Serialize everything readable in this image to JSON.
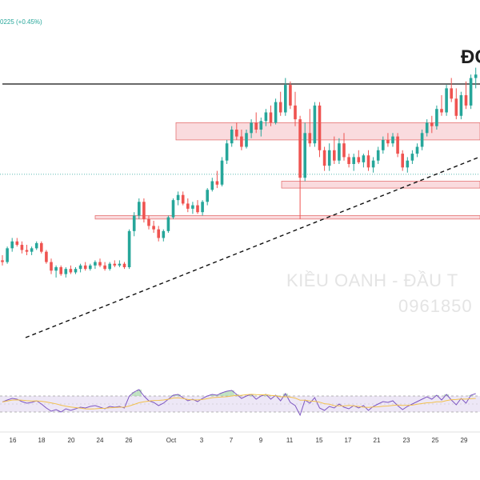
{
  "header": {
    "ticker_change": "0225 (+0.45%)",
    "title": "ĐC"
  },
  "watermark": {
    "line1": "KIỀU OANH - ĐẦU T",
    "line2": "0961850"
  },
  "colors": {
    "up": "#26a69a",
    "down": "#ef5350",
    "zone_fill": "#f8cfd3",
    "zone_stroke": "#e57373",
    "rsi_line": "#7e57c2",
    "rsi_ma": "#f2c14e",
    "rsi_band": "#ede7f6"
  },
  "chart_data": {
    "type": "candlestick",
    "x_tick_labels": [
      "16",
      "18",
      "20",
      "24",
      "26",
      "Oct",
      "3",
      "7",
      "9",
      "11",
      "15",
      "17",
      "21",
      "23",
      "25",
      "29"
    ],
    "price_axis_range": [
      0,
      100
    ],
    "candles": [
      {
        "o": 44,
        "h": 47,
        "l": 41,
        "c": 43
      },
      {
        "o": 43,
        "h": 52,
        "l": 42,
        "c": 51
      },
      {
        "o": 51,
        "h": 57,
        "l": 49,
        "c": 55
      },
      {
        "o": 55,
        "h": 57,
        "l": 52,
        "c": 53
      },
      {
        "o": 53,
        "h": 55,
        "l": 48,
        "c": 50
      },
      {
        "o": 50,
        "h": 53,
        "l": 47,
        "c": 49
      },
      {
        "o": 49,
        "h": 52,
        "l": 47,
        "c": 51
      },
      {
        "o": 51,
        "h": 55,
        "l": 50,
        "c": 54
      },
      {
        "o": 54,
        "h": 55,
        "l": 48,
        "c": 49
      },
      {
        "o": 49,
        "h": 50,
        "l": 42,
        "c": 43
      },
      {
        "o": 43,
        "h": 45,
        "l": 36,
        "c": 38
      },
      {
        "o": 38,
        "h": 41,
        "l": 34,
        "c": 40
      },
      {
        "o": 40,
        "h": 41,
        "l": 35,
        "c": 36
      },
      {
        "o": 36,
        "h": 40,
        "l": 34,
        "c": 39
      },
      {
        "o": 39,
        "h": 41,
        "l": 36,
        "c": 37
      },
      {
        "o": 37,
        "h": 40,
        "l": 36,
        "c": 39
      },
      {
        "o": 39,
        "h": 42,
        "l": 37,
        "c": 41
      },
      {
        "o": 41,
        "h": 43,
        "l": 38,
        "c": 39
      },
      {
        "o": 39,
        "h": 42,
        "l": 38,
        "c": 41
      },
      {
        "o": 41,
        "h": 44,
        "l": 39,
        "c": 43
      },
      {
        "o": 43,
        "h": 45,
        "l": 40,
        "c": 41
      },
      {
        "o": 41,
        "h": 43,
        "l": 38,
        "c": 39
      },
      {
        "o": 39,
        "h": 43,
        "l": 38,
        "c": 42
      },
      {
        "o": 42,
        "h": 44,
        "l": 40,
        "c": 41
      },
      {
        "o": 41,
        "h": 44,
        "l": 40,
        "c": 42
      },
      {
        "o": 42,
        "h": 43,
        "l": 39,
        "c": 40
      },
      {
        "o": 40,
        "h": 62,
        "l": 39,
        "c": 61
      },
      {
        "o": 61,
        "h": 72,
        "l": 58,
        "c": 70
      },
      {
        "o": 70,
        "h": 80,
        "l": 68,
        "c": 78
      },
      {
        "o": 78,
        "h": 80,
        "l": 66,
        "c": 68
      },
      {
        "o": 68,
        "h": 70,
        "l": 62,
        "c": 64
      },
      {
        "o": 64,
        "h": 67,
        "l": 60,
        "c": 62
      },
      {
        "o": 62,
        "h": 64,
        "l": 55,
        "c": 57
      },
      {
        "o": 57,
        "h": 62,
        "l": 55,
        "c": 61
      },
      {
        "o": 61,
        "h": 70,
        "l": 60,
        "c": 69
      },
      {
        "o": 69,
        "h": 80,
        "l": 68,
        "c": 79
      },
      {
        "o": 79,
        "h": 84,
        "l": 76,
        "c": 82
      },
      {
        "o": 82,
        "h": 84,
        "l": 76,
        "c": 77
      },
      {
        "o": 77,
        "h": 80,
        "l": 72,
        "c": 74
      },
      {
        "o": 74,
        "h": 78,
        "l": 71,
        "c": 76
      },
      {
        "o": 76,
        "h": 79,
        "l": 71,
        "c": 72
      },
      {
        "o": 72,
        "h": 79,
        "l": 70,
        "c": 78
      },
      {
        "o": 78,
        "h": 86,
        "l": 76,
        "c": 85
      },
      {
        "o": 85,
        "h": 92,
        "l": 84,
        "c": 90
      },
      {
        "o": 90,
        "h": 96,
        "l": 86,
        "c": 88
      },
      {
        "o": 88,
        "h": 104,
        "l": 87,
        "c": 102
      },
      {
        "o": 102,
        "h": 114,
        "l": 100,
        "c": 112
      },
      {
        "o": 112,
        "h": 122,
        "l": 110,
        "c": 120
      },
      {
        "o": 120,
        "h": 124,
        "l": 114,
        "c": 116
      },
      {
        "o": 116,
        "h": 120,
        "l": 108,
        "c": 110
      },
      {
        "o": 110,
        "h": 120,
        "l": 109,
        "c": 118
      },
      {
        "o": 118,
        "h": 126,
        "l": 115,
        "c": 124
      },
      {
        "o": 124,
        "h": 130,
        "l": 118,
        "c": 120
      },
      {
        "o": 120,
        "h": 127,
        "l": 116,
        "c": 125
      },
      {
        "o": 125,
        "h": 132,
        "l": 122,
        "c": 130
      },
      {
        "o": 130,
        "h": 134,
        "l": 122,
        "c": 124
      },
      {
        "o": 124,
        "h": 138,
        "l": 123,
        "c": 136
      },
      {
        "o": 136,
        "h": 142,
        "l": 128,
        "c": 130
      },
      {
        "o": 130,
        "h": 150,
        "l": 128,
        "c": 146
      },
      {
        "o": 146,
        "h": 148,
        "l": 132,
        "c": 134
      },
      {
        "o": 134,
        "h": 142,
        "l": 122,
        "c": 126
      },
      {
        "o": 126,
        "h": 128,
        "l": 68,
        "c": 92
      },
      {
        "o": 92,
        "h": 124,
        "l": 90,
        "c": 118
      },
      {
        "o": 118,
        "h": 132,
        "l": 110,
        "c": 112
      },
      {
        "o": 112,
        "h": 136,
        "l": 110,
        "c": 134
      },
      {
        "o": 134,
        "h": 136,
        "l": 104,
        "c": 108
      },
      {
        "o": 108,
        "h": 110,
        "l": 96,
        "c": 99
      },
      {
        "o": 99,
        "h": 112,
        "l": 96,
        "c": 108
      },
      {
        "o": 108,
        "h": 116,
        "l": 100,
        "c": 102
      },
      {
        "o": 102,
        "h": 115,
        "l": 100,
        "c": 112
      },
      {
        "o": 112,
        "h": 118,
        "l": 102,
        "c": 104
      },
      {
        "o": 104,
        "h": 106,
        "l": 98,
        "c": 100
      },
      {
        "o": 100,
        "h": 106,
        "l": 96,
        "c": 104
      },
      {
        "o": 104,
        "h": 108,
        "l": 100,
        "c": 101
      },
      {
        "o": 101,
        "h": 106,
        "l": 98,
        "c": 105
      },
      {
        "o": 105,
        "h": 108,
        "l": 96,
        "c": 98
      },
      {
        "o": 98,
        "h": 104,
        "l": 95,
        "c": 102
      },
      {
        "o": 102,
        "h": 110,
        "l": 100,
        "c": 108
      },
      {
        "o": 108,
        "h": 116,
        "l": 106,
        "c": 114
      },
      {
        "o": 114,
        "h": 118,
        "l": 110,
        "c": 112
      },
      {
        "o": 112,
        "h": 118,
        "l": 110,
        "c": 116
      },
      {
        "o": 116,
        "h": 118,
        "l": 104,
        "c": 106
      },
      {
        "o": 106,
        "h": 108,
        "l": 96,
        "c": 98
      },
      {
        "o": 98,
        "h": 104,
        "l": 95,
        "c": 102
      },
      {
        "o": 102,
        "h": 108,
        "l": 100,
        "c": 106
      },
      {
        "o": 106,
        "h": 112,
        "l": 104,
        "c": 110
      },
      {
        "o": 110,
        "h": 120,
        "l": 108,
        "c": 118
      },
      {
        "o": 118,
        "h": 126,
        "l": 116,
        "c": 124
      },
      {
        "o": 124,
        "h": 128,
        "l": 118,
        "c": 122
      },
      {
        "o": 122,
        "h": 134,
        "l": 120,
        "c": 132
      },
      {
        "o": 132,
        "h": 140,
        "l": 128,
        "c": 130
      },
      {
        "o": 130,
        "h": 146,
        "l": 128,
        "c": 144
      },
      {
        "o": 144,
        "h": 150,
        "l": 136,
        "c": 138
      },
      {
        "o": 138,
        "h": 144,
        "l": 126,
        "c": 128
      },
      {
        "o": 128,
        "h": 142,
        "l": 126,
        "c": 140
      },
      {
        "o": 140,
        "h": 148,
        "l": 132,
        "c": 134
      },
      {
        "o": 134,
        "h": 152,
        "l": 132,
        "c": 150
      },
      {
        "o": 150,
        "h": 156,
        "l": 144,
        "c": 152
      }
    ],
    "resistance_line": 150,
    "supply_zones": [
      {
        "from": 114,
        "to": 124
      },
      {
        "from": 86,
        "to": 90
      },
      {
        "from": 68,
        "to": 70
      }
    ],
    "dotted_level": 94,
    "rsi": {
      "range": [
        0,
        100
      ],
      "upper_band": 70,
      "lower_band": 30,
      "values": [
        55,
        60,
        64,
        62,
        56,
        52,
        54,
        58,
        50,
        40,
        32,
        36,
        30,
        38,
        34,
        38,
        42,
        40,
        44,
        46,
        42,
        38,
        44,
        42,
        44,
        40,
        70,
        80,
        86,
        70,
        58,
        54,
        46,
        52,
        62,
        72,
        74,
        66,
        58,
        62,
        56,
        64,
        70,
        74,
        72,
        78,
        82,
        84,
        74,
        64,
        70,
        74,
        62,
        70,
        74,
        62,
        72,
        58,
        76,
        54,
        46,
        22,
        60,
        52,
        66,
        40,
        34,
        44,
        40,
        50,
        42,
        38,
        46,
        40,
        46,
        34,
        44,
        50,
        56,
        54,
        58,
        46,
        36,
        44,
        50,
        56,
        62,
        68,
        62,
        72,
        60,
        74,
        60,
        48,
        64,
        52,
        72,
        76
      ]
    }
  }
}
